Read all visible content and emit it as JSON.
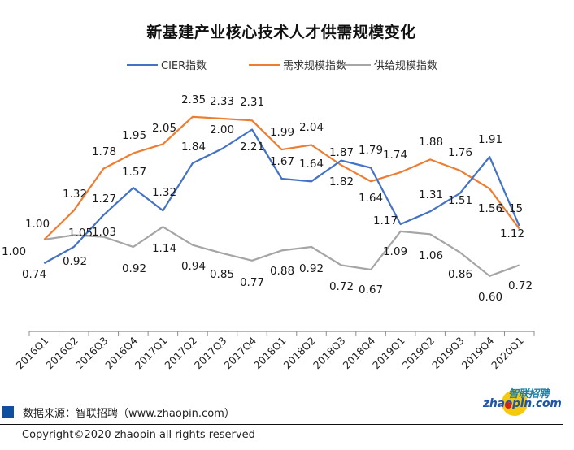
{
  "chart_data": {
    "type": "line",
    "title": "新基建产业核心技术人才供需规模变化",
    "xlabel": "",
    "ylabel": "",
    "categories": [
      "2016Q1",
      "2016Q2",
      "2016Q3",
      "2016Q4",
      "2017Q1",
      "2017Q2",
      "2017Q3",
      "2017Q4",
      "2018Q1",
      "2018Q2",
      "2018Q3",
      "2018Q4",
      "2019Q1",
      "2019Q2",
      "2019Q3",
      "2019Q4",
      "2020Q1"
    ],
    "series": [
      {
        "name": "CIER指数",
        "color": "#4472c4",
        "values": [
          0.74,
          0.92,
          1.27,
          1.57,
          1.32,
          1.84,
          2.0,
          2.21,
          1.67,
          1.64,
          1.87,
          1.79,
          1.17,
          1.31,
          1.51,
          1.91,
          1.15
        ]
      },
      {
        "name": "需求规模指数",
        "color": "#ed7d31",
        "values": [
          1.0,
          1.32,
          1.78,
          1.95,
          2.05,
          2.35,
          2.33,
          2.31,
          1.99,
          2.04,
          1.82,
          1.64,
          1.74,
          1.88,
          1.76,
          1.56,
          1.12
        ]
      },
      {
        "name": "供给规模指数",
        "color": "#a5a5a5",
        "values": [
          1.0,
          1.05,
          1.03,
          0.92,
          1.14,
          0.94,
          0.85,
          0.77,
          0.88,
          0.92,
          0.72,
          0.67,
          1.09,
          1.06,
          0.86,
          0.6,
          0.72
        ]
      }
    ],
    "data_labels": true,
    "grid": false,
    "legend_position": "top",
    "y_axis_visible": false
  },
  "footer": {
    "source": "数据来源：智联招聘（www.zhaopin.com）",
    "copyright": "Copyright©2020  zhaopin all rights reserved",
    "logo_cn": "智联招聘",
    "logo_en": "zhaopin.com",
    "accent_color": "#0e4fa0"
  }
}
